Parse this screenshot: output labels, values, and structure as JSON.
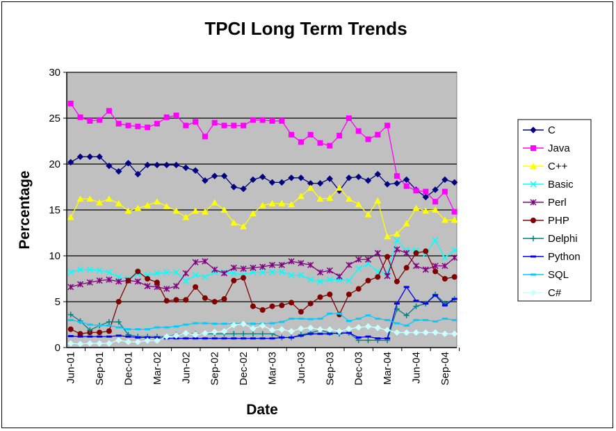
{
  "chart_data": {
    "type": "line",
    "title": "TPCI Long Term Trends",
    "xlabel": "Date",
    "ylabel": "Percentage",
    "ylim": [
      0,
      30
    ],
    "yticks": [
      0,
      5,
      10,
      15,
      20,
      25,
      30
    ],
    "grid": "horizontal",
    "legend_position": "right",
    "x": [
      "Jun-01",
      "Jul-01",
      "Aug-01",
      "Sep-01",
      "Oct-01",
      "Nov-01",
      "Dec-01",
      "Jan-02",
      "Feb-02",
      "Mar-02",
      "Apr-02",
      "May-02",
      "Jun-02",
      "Jul-02",
      "Aug-02",
      "Sep-02",
      "Oct-02",
      "Nov-02",
      "Dec-02",
      "Jan-03",
      "Feb-03",
      "Mar-03",
      "Apr-03",
      "May-03",
      "Jun-03",
      "Jul-03",
      "Aug-03",
      "Sep-03",
      "Oct-03",
      "Nov-03",
      "Dec-03",
      "Jan-04",
      "Feb-04",
      "Mar-04",
      "Apr-04",
      "May-04",
      "Jun-04",
      "Jul-04",
      "Aug-04",
      "Sep-04",
      "Oct-04"
    ],
    "xtick_labels": [
      "Jun-01",
      "Sep-01",
      "Dec-01",
      "Mar-02",
      "Jun-02",
      "Sep-02",
      "Dec-02",
      "Mar-03",
      "Jun-03",
      "Sep-03",
      "Dec-03",
      "Mar-04",
      "Jun-04",
      "Sep-04"
    ],
    "series": [
      {
        "name": "C",
        "color": "#000080",
        "marker": "diamond",
        "values": [
          20.2,
          20.8,
          20.8,
          20.8,
          19.8,
          19.2,
          20.1,
          18.9,
          19.9,
          19.9,
          19.9,
          19.9,
          19.6,
          19.3,
          18.2,
          18.7,
          18.7,
          17.5,
          17.3,
          18.3,
          18.6,
          18.0,
          18.0,
          18.5,
          18.5,
          17.9,
          17.9,
          18.4,
          17.1,
          18.5,
          18.6,
          18.2,
          18.9,
          17.8,
          17.9,
          18.3,
          17.2,
          16.4,
          17.2,
          18.3,
          18.0
        ]
      },
      {
        "name": "Java",
        "color": "#FF00FF",
        "marker": "square",
        "values": [
          26.6,
          25.1,
          24.7,
          24.8,
          25.8,
          24.4,
          24.2,
          24.1,
          24.0,
          24.4,
          25.1,
          25.3,
          24.2,
          24.6,
          23.0,
          24.5,
          24.2,
          24.2,
          24.2,
          24.8,
          24.8,
          24.7,
          24.7,
          23.2,
          22.4,
          23.2,
          22.3,
          22.0,
          23.1,
          25.0,
          23.6,
          22.7,
          23.2,
          24.2,
          18.7,
          17.6,
          17.1,
          17.0,
          15.9,
          17.0,
          14.8
        ]
      },
      {
        "name": "C++",
        "color": "#FFFF00",
        "marker": "triangle",
        "values": [
          14.2,
          16.2,
          16.2,
          15.8,
          16.2,
          15.7,
          14.9,
          15.2,
          15.5,
          15.9,
          15.4,
          14.9,
          14.2,
          14.9,
          14.8,
          15.8,
          15.0,
          13.6,
          13.2,
          14.6,
          15.5,
          15.7,
          15.7,
          15.6,
          16.5,
          17.4,
          16.2,
          16.3,
          17.4,
          16.2,
          15.6,
          14.5,
          16.0,
          12.1,
          12.4,
          13.5,
          15.2,
          14.9,
          15.0,
          13.9,
          13.9
        ]
      },
      {
        "name": "Basic",
        "color": "#00FFFF",
        "marker": "x",
        "values": [
          8.2,
          8.5,
          8.5,
          8.4,
          8.2,
          7.7,
          7.5,
          8.0,
          7.9,
          8.1,
          8.2,
          8.2,
          7.25,
          7.9,
          7.7,
          8.2,
          8.2,
          8.1,
          7.9,
          8.2,
          8.2,
          8.25,
          8.25,
          7.9,
          7.9,
          7.4,
          7.2,
          7.4,
          7.4,
          7.3,
          8.6,
          9.1,
          8.3,
          8.1,
          11.7,
          10.6,
          10.6,
          10.2,
          11.7,
          9.8,
          10.6
        ]
      },
      {
        "name": "Perl",
        "color": "#800080",
        "marker": "star",
        "values": [
          6.6,
          6.9,
          7.1,
          7.3,
          7.4,
          7.2,
          7.3,
          7.2,
          6.7,
          6.6,
          6.4,
          6.7,
          8.1,
          9.3,
          9.4,
          8.5,
          8.1,
          8.7,
          8.6,
          8.7,
          8.8,
          9.0,
          9.0,
          9.4,
          9.2,
          9.0,
          8.2,
          8.4,
          7.75,
          9.0,
          9.6,
          9.6,
          10.3,
          7.8,
          10.7,
          10.3,
          8.9,
          8.5,
          8.9,
          8.9,
          9.8
        ]
      },
      {
        "name": "PHP",
        "color": "#800000",
        "marker": "circle",
        "values": [
          2.0,
          1.5,
          1.65,
          1.65,
          1.8,
          5.0,
          7.3,
          8.3,
          7.5,
          7.1,
          5.1,
          5.2,
          5.2,
          6.6,
          5.4,
          5.0,
          5.3,
          7.3,
          7.6,
          4.5,
          4.1,
          4.5,
          4.6,
          4.9,
          3.9,
          4.8,
          5.5,
          5.8,
          3.6,
          5.8,
          6.4,
          7.3,
          7.7,
          9.9,
          7.2,
          8.7,
          10.3,
          10.5,
          8.3,
          7.5,
          7.7
        ]
      },
      {
        "name": "Delphi",
        "color": "#008080",
        "marker": "plus",
        "values": [
          3.6,
          2.9,
          1.9,
          2.4,
          2.8,
          2.8,
          1.4,
          1.2,
          1.2,
          1.2,
          1.2,
          1.4,
          1.5,
          1.5,
          1.5,
          1.5,
          1.5,
          1.5,
          1.5,
          1.5,
          1.5,
          1.5,
          1.1,
          1.1,
          1.4,
          1.6,
          1.9,
          1.6,
          1.5,
          1.6,
          0.8,
          0.8,
          0.8,
          0.8,
          4.2,
          3.5,
          4.5,
          4.8,
          5.8,
          4.8,
          5.3
        ]
      },
      {
        "name": "Python",
        "color": "#0000FF",
        "marker": "dash",
        "values": [
          1.25,
          1.2,
          1.2,
          1.2,
          1.2,
          1.3,
          1.2,
          1.1,
          1.1,
          1.1,
          1.0,
          1.0,
          1.0,
          1.0,
          1.0,
          1.0,
          1.0,
          1.0,
          1.0,
          1.0,
          1.0,
          1.0,
          1.1,
          1.1,
          1.3,
          1.5,
          1.5,
          1.5,
          1.6,
          1.6,
          1.1,
          1.2,
          1.0,
          1.0,
          4.8,
          6.6,
          5.1,
          4.8,
          5.7,
          4.6,
          5.3
        ]
      },
      {
        "name": "SQL",
        "color": "#00CCFF",
        "marker": "dash",
        "values": [
          3.0,
          2.8,
          2.5,
          2.4,
          2.4,
          2.2,
          2.0,
          2.0,
          2.0,
          2.2,
          2.2,
          2.3,
          2.5,
          2.65,
          2.65,
          2.6,
          2.6,
          2.6,
          2.65,
          2.6,
          2.6,
          2.65,
          2.8,
          3.15,
          3.15,
          3.1,
          3.15,
          3.7,
          3.7,
          2.9,
          3.15,
          3.5,
          3.15,
          3.0,
          2.65,
          2.4,
          3.0,
          3.0,
          2.85,
          3.15,
          3.0
        ]
      },
      {
        "name": "C#",
        "color": "#CCFFFF",
        "marker": "diamond",
        "values": [
          0.45,
          0.4,
          0.45,
          0.45,
          0.45,
          0.8,
          0.62,
          0.62,
          0.76,
          0.76,
          1.2,
          1.3,
          1.56,
          1.4,
          1.56,
          1.7,
          1.77,
          2.45,
          2.58,
          2.07,
          2.4,
          1.9,
          1.97,
          1.77,
          2.07,
          2.15,
          1.97,
          1.97,
          1.77,
          2.03,
          2.2,
          2.3,
          2.15,
          1.9,
          1.64,
          1.64,
          1.64,
          1.64,
          1.64,
          1.5,
          1.5
        ]
      }
    ]
  }
}
